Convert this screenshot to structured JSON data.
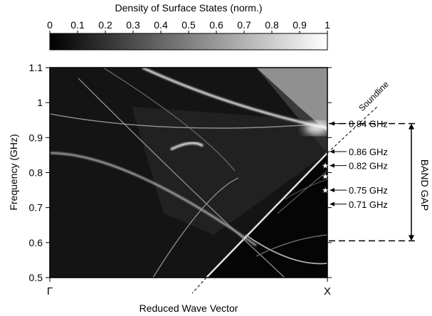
{
  "chart_data": {
    "type": "heatmap",
    "colorbar": {
      "title": "Density of Surface States (norm.)",
      "ticks": [
        "0",
        "0.1",
        "0.2",
        "0.3",
        "0.4",
        "0.5",
        "0.6",
        "0.7",
        "0.8",
        "0.9",
        "1"
      ],
      "range": [
        0,
        1
      ],
      "colormap": "grayscale"
    },
    "xlabel": "Reduced Wave Vector",
    "x_ticks": [
      "Γ",
      "X"
    ],
    "ylabel": "Frequency (GHz)",
    "ylim": [
      0.5,
      1.1
    ],
    "y_ticks": [
      "0.5",
      "0.6",
      "0.7",
      "0.8",
      "0.9",
      "1",
      "1.1"
    ],
    "soundline_label": "Soundline",
    "frequency_annotations": [
      {
        "label": "0.94 GHz",
        "value": 0.94
      },
      {
        "label": "0.86 GHz",
        "value": 0.86
      },
      {
        "label": "0.82 GHz",
        "value": 0.82
      },
      {
        "label": "0.75 GHz",
        "value": 0.75
      },
      {
        "label": "0.71 GHz",
        "value": 0.71
      }
    ],
    "band_gap": {
      "label": "BAND GAP",
      "from": 0.605,
      "to": 0.94
    }
  }
}
